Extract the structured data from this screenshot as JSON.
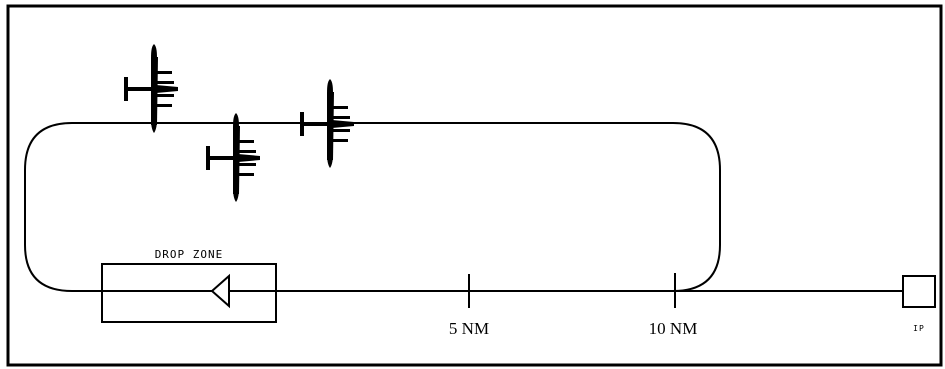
{
  "diagram": {
    "drop_zone_label": "DROP ZONE",
    "marker_5nm_label": "5 NM",
    "marker_10nm_label": "10 NM",
    "ip_label": "IP"
  },
  "colors": {
    "ink": "#000000",
    "background": "#ffffff"
  },
  "icons": {
    "aircraft": "aircraft-icon",
    "drop_zone_marker": "triangle-marker-icon",
    "initial_point": "square-ip-icon"
  }
}
